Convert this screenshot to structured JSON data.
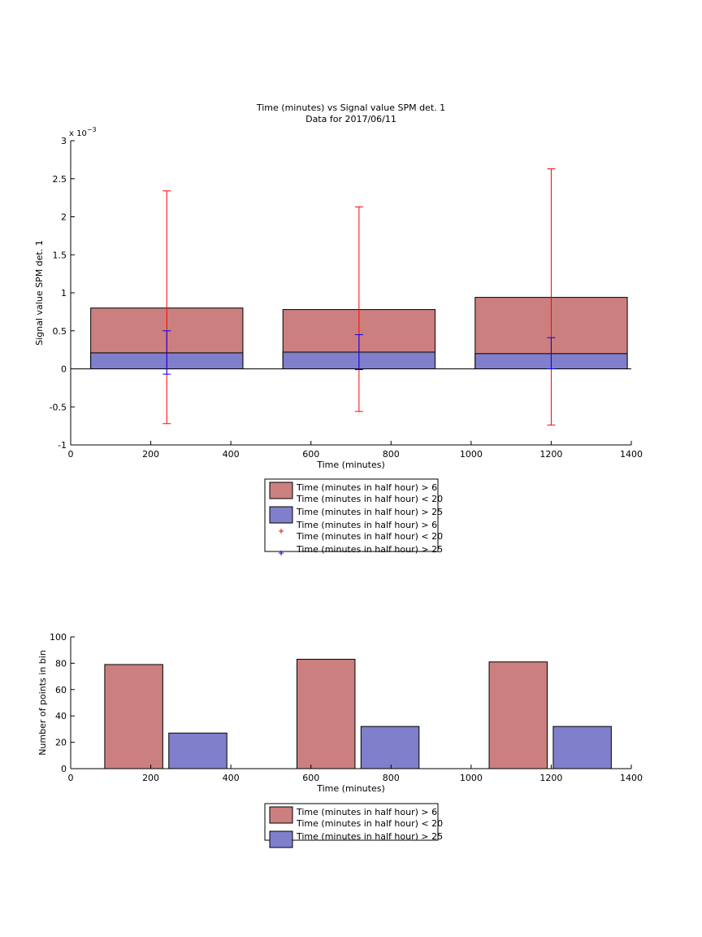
{
  "chart_data": [
    {
      "type": "bar",
      "title": "Time (minutes) vs Signal value SPM det. 1",
      "subtitle": "Data for 2017/06/11",
      "xlabel": "Time (minutes)",
      "ylabel": "Signal value SPM det. 1",
      "y_exponent_label": "x 10",
      "y_exponent_power": "−3",
      "xlim": [
        0,
        1400
      ],
      "ylim": [
        -1,
        3
      ],
      "xticks": [
        0,
        200,
        400,
        600,
        800,
        1000,
        1200,
        1400
      ],
      "yticks": [
        -1,
        -0.5,
        0,
        0.5,
        1,
        1.5,
        2,
        2.5,
        3
      ],
      "bins": [
        {
          "x_start": 50,
          "x_end": 430,
          "center": 240
        },
        {
          "x_start": 530,
          "x_end": 910,
          "center": 720
        },
        {
          "x_start": 1010,
          "x_end": 1390,
          "center": 1200
        }
      ],
      "series": [
        {
          "name": "Time (minutes in half hour) > 6 Time (minutes in half hour) < 20",
          "color": "#cc7f7f",
          "values": [
            0.8,
            0.78,
            0.94
          ]
        },
        {
          "name": "Time (minutes in half hour) > 25",
          "color": "#7f7fcc",
          "values": [
            0.21,
            0.22,
            0.2
          ]
        }
      ],
      "errorbars": [
        {
          "name": "Time (minutes in half hour) > 6 Time (minutes in half hour) < 20",
          "color": "#ff0000",
          "x": [
            240,
            720,
            1200
          ],
          "low": [
            -0.72,
            -0.56,
            -0.74
          ],
          "high": [
            2.34,
            2.13,
            2.63
          ]
        },
        {
          "name": "Time (minutes in half hour) > 25",
          "color": "#0000ff",
          "x": [
            240,
            720,
            1200
          ],
          "low": [
            -0.07,
            -0.01,
            0.0
          ],
          "high": [
            0.5,
            0.45,
            0.41
          ]
        }
      ],
      "legend": {
        "placement": "below",
        "entries": [
          {
            "kind": "patch",
            "color": "#cc7f7f",
            "lines": [
              "Time (minutes in half hour) > 6",
              "Time (minutes in half hour) < 20"
            ]
          },
          {
            "kind": "patch",
            "color": "#7f7fcc",
            "lines": [
              "Time (minutes in half hour) > 25"
            ]
          },
          {
            "kind": "marker",
            "color": "#ff0000",
            "lines": [
              "Time (minutes in half hour) > 6",
              "Time (minutes in half hour) < 20"
            ]
          },
          {
            "kind": "marker",
            "color": "#0000ff",
            "lines": [
              "Time (minutes in half hour) > 25"
            ]
          }
        ]
      }
    },
    {
      "type": "bar",
      "xlabel": "Time (minutes)",
      "ylabel": "Number of points in bin",
      "xlim": [
        0,
        1400
      ],
      "ylim": [
        0,
        100
      ],
      "xticks": [
        0,
        200,
        400,
        600,
        800,
        1000,
        1200,
        1400
      ],
      "yticks": [
        0,
        20,
        40,
        60,
        80,
        100
      ],
      "series": [
        {
          "name": "Time (minutes in half hour) > 6 Time (minutes in half hour) < 20",
          "color": "#cc7f7f",
          "x_start": [
            85,
            565,
            1045
          ],
          "x_end": [
            230,
            710,
            1190
          ],
          "values": [
            79,
            83,
            81
          ]
        },
        {
          "name": "Time (minutes in half hour) > 25",
          "color": "#7f7fcc",
          "x_start": [
            245,
            725,
            1205
          ],
          "x_end": [
            390,
            870,
            1350
          ],
          "values": [
            27,
            32,
            32
          ]
        }
      ],
      "legend": {
        "placement": "below",
        "entries": [
          {
            "kind": "patch",
            "color": "#cc7f7f",
            "lines": [
              "Time (minutes in half hour) > 6",
              "Time (minutes in half hour) < 20"
            ]
          },
          {
            "kind": "patch",
            "color": "#7f7fcc",
            "lines": [
              "Time (minutes in half hour) > 25"
            ]
          }
        ]
      }
    }
  ]
}
